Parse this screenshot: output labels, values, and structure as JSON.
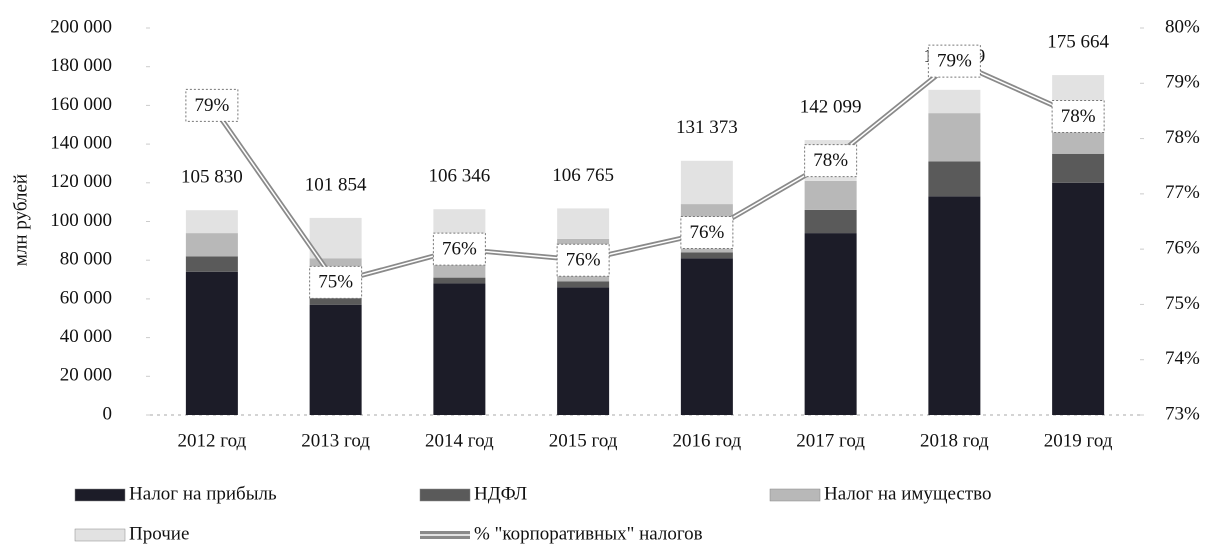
{
  "chart_data": {
    "type": "stacked_bar_line",
    "y_label": "млн рублей",
    "categories": [
      "2012 год",
      "2013 год",
      "2014 год",
      "2015 год",
      "2016 год",
      "2017 год",
      "2018 год",
      "2019 год"
    ],
    "series": [
      {
        "name": "Налог на прибыль",
        "color": "#1c1c28",
        "values": [
          74000,
          57000,
          68000,
          66000,
          81000,
          94000,
          113000,
          120000
        ]
      },
      {
        "name": "НДФЛ",
        "color": "#5a5a5a",
        "values": [
          8000,
          4000,
          3000,
          3000,
          3000,
          12000,
          18000,
          15000
        ]
      },
      {
        "name": "Налог на имущество",
        "color": "#b8b8b8",
        "values": [
          12000,
          20000,
          20000,
          22000,
          25000,
          15000,
          25000,
          20000
        ]
      },
      {
        "name": "Прочие",
        "color": "#e2e2e2",
        "values": [
          11830,
          20854,
          15346,
          15765,
          22373,
          21099,
          12039,
          20664
        ]
      },
      {
        "name": "% \"корпоративных\" налогов",
        "color": "#8a8a8a",
        "axis": "y2",
        "values": [
          78.6,
          75.4,
          76.0,
          75.8,
          76.3,
          77.6,
          79.4,
          78.4
        ],
        "value_labels": [
          "79%",
          "75%",
          "76%",
          "76%",
          "76%",
          "78%",
          "79%",
          "78%"
        ]
      }
    ],
    "totals": [
      105830,
      101854,
      106346,
      106765,
      131373,
      142099,
      168039,
      175664
    ],
    "total_labels": [
      "105 830",
      "101 854",
      "106 346",
      "106 765",
      "131 373",
      "142 099",
      "168 039",
      "175 664"
    ],
    "ylim": [
      0,
      200000
    ],
    "yticks": [
      0,
      {
        "value": 20000,
        "label": "20 000"
      },
      {
        "value": 40000,
        "label": "40 000"
      },
      {
        "value": 60000,
        "label": "60 000"
      },
      {
        "value": 80000,
        "label": "80 000"
      },
      {
        "value": 100000,
        "label": "100 000"
      },
      {
        "value": 120000,
        "label": "120 000"
      },
      {
        "value": 140000,
        "label": "140 000"
      },
      {
        "value": 160000,
        "label": "160 000"
      },
      {
        "value": 180000,
        "label": "180 000"
      },
      {
        "value": 200000,
        "label": "200 000"
      }
    ],
    "y2lim": [
      73,
      80
    ],
    "y2ticks": [
      {
        "value": 73,
        "label": "73%"
      },
      {
        "value": 74,
        "label": "74%"
      },
      {
        "value": 75,
        "label": "75%"
      },
      {
        "value": 76,
        "label": "76%"
      },
      {
        "value": 77,
        "label": "77%"
      },
      {
        "value": 78,
        "label": "78%"
      },
      {
        "value": 79,
        "label": "79%"
      },
      {
        "value": 80,
        "label": "80%"
      }
    ],
    "legend": "bottom"
  }
}
